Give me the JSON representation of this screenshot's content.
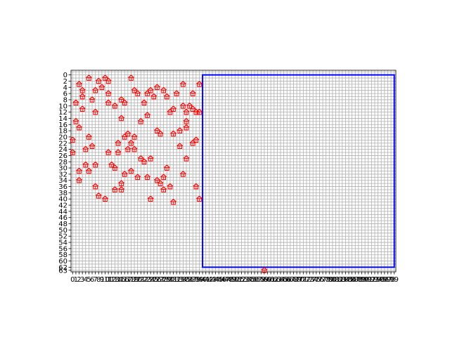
{
  "chart_data": {
    "type": "scatter",
    "title": "",
    "xlabel": "",
    "ylabel": "",
    "xlim": [
      -0.5,
      99.5
    ],
    "ylim": [
      63.5,
      -1.5
    ],
    "y_inverted": true,
    "grid": true,
    "grid_color": "#b0b0b0",
    "x_tick_labels": [
      "0",
      "1",
      "2",
      "3",
      "4",
      "5",
      "6",
      "7",
      "8",
      "9",
      "10",
      "11",
      "12",
      "13",
      "14",
      "15",
      "16",
      "17",
      "18",
      "19",
      "20",
      "21",
      "22",
      "23",
      "24",
      "25",
      "26",
      "27",
      "28",
      "29",
      "30",
      "31",
      "32",
      "33",
      "34",
      "35",
      "36",
      "37",
      "38",
      "39",
      "40",
      "41",
      "42",
      "43",
      "44",
      "45",
      "46",
      "47",
      "48",
      "49",
      "50",
      "51",
      "52",
      "53",
      "54",
      "55",
      "56",
      "57",
      "58",
      "59",
      "60",
      "61",
      "62",
      "63",
      "64",
      "65",
      "66",
      "67",
      "68",
      "69",
      "70",
      "71",
      "72",
      "73",
      "74",
      "75",
      "76",
      "77",
      "78",
      "79",
      "80",
      "81",
      "82",
      "83",
      "84",
      "85",
      "86",
      "87",
      "88",
      "89",
      "90",
      "91",
      "92",
      "93",
      "94",
      "95",
      "96",
      "97",
      "98",
      "99"
    ],
    "y_tick_labels": [
      "0",
      "2",
      "4",
      "6",
      "8",
      "10",
      "12",
      "14",
      "16",
      "18",
      "20",
      "22",
      "24",
      "26",
      "28",
      "30",
      "32",
      "34",
      "36",
      "38",
      "40",
      "42",
      "44",
      "46",
      "48",
      "50",
      "52",
      "54",
      "56",
      "58",
      "60",
      "62",
      "63"
    ],
    "marker": {
      "shape": "house-icon",
      "color": "#ff0000"
    },
    "points": [
      {
        "x": 5,
        "y": 1
      },
      {
        "x": 10,
        "y": 1
      },
      {
        "x": 18,
        "y": 1
      },
      {
        "x": 2,
        "y": 3
      },
      {
        "x": 8,
        "y": 2
      },
      {
        "x": 11,
        "y": 2
      },
      {
        "x": 34,
        "y": 3
      },
      {
        "x": 39,
        "y": 3
      },
      {
        "x": 9,
        "y": 4
      },
      {
        "x": 26,
        "y": 4
      },
      {
        "x": 3,
        "y": 5
      },
      {
        "x": 7,
        "y": 5
      },
      {
        "x": 19,
        "y": 5
      },
      {
        "x": 24,
        "y": 5
      },
      {
        "x": 28,
        "y": 5
      },
      {
        "x": 37,
        "y": 6
      },
      {
        "x": 11,
        "y": 6
      },
      {
        "x": 20,
        "y": 6
      },
      {
        "x": 23,
        "y": 6
      },
      {
        "x": 32,
        "y": 6
      },
      {
        "x": 3,
        "y": 7
      },
      {
        "x": 6,
        "y": 8
      },
      {
        "x": 15,
        "y": 8
      },
      {
        "x": 25,
        "y": 7
      },
      {
        "x": 29,
        "y": 7
      },
      {
        "x": 1,
        "y": 9
      },
      {
        "x": 11,
        "y": 9
      },
      {
        "x": 16,
        "y": 9
      },
      {
        "x": 22,
        "y": 9
      },
      {
        "x": 34,
        "y": 10
      },
      {
        "x": 13,
        "y": 10
      },
      {
        "x": 36,
        "y": 10
      },
      {
        "x": 37,
        "y": 11
      },
      {
        "x": 3,
        "y": 11
      },
      {
        "x": 31,
        "y": 11
      },
      {
        "x": 39,
        "y": 12
      },
      {
        "x": 7,
        "y": 12
      },
      {
        "x": 30,
        "y": 12
      },
      {
        "x": 35,
        "y": 12
      },
      {
        "x": 38,
        "y": 12
      },
      {
        "x": 23,
        "y": 13
      },
      {
        "x": 15,
        "y": 14
      },
      {
        "x": 1,
        "y": 15
      },
      {
        "x": 21,
        "y": 15
      },
      {
        "x": 35,
        "y": 15
      },
      {
        "x": 2,
        "y": 17
      },
      {
        "x": 35,
        "y": 17
      },
      {
        "x": 26,
        "y": 18
      },
      {
        "x": 33,
        "y": 18
      },
      {
        "x": 17,
        "y": 19
      },
      {
        "x": 27,
        "y": 19
      },
      {
        "x": 31,
        "y": 19
      },
      {
        "x": 5,
        "y": 20
      },
      {
        "x": 16,
        "y": 20
      },
      {
        "x": 19,
        "y": 20
      },
      {
        "x": 0,
        "y": 21
      },
      {
        "x": 38,
        "y": 21
      },
      {
        "x": 14,
        "y": 22
      },
      {
        "x": 18,
        "y": 22
      },
      {
        "x": 37,
        "y": 22
      },
      {
        "x": 6,
        "y": 23
      },
      {
        "x": 33,
        "y": 23
      },
      {
        "x": 4,
        "y": 24
      },
      {
        "x": 17,
        "y": 24
      },
      {
        "x": 19,
        "y": 24
      },
      {
        "x": 0,
        "y": 25
      },
      {
        "x": 11,
        "y": 25
      },
      {
        "x": 14,
        "y": 25
      },
      {
        "x": 21,
        "y": 27
      },
      {
        "x": 22,
        "y": 28
      },
      {
        "x": 24,
        "y": 27
      },
      {
        "x": 35,
        "y": 27
      },
      {
        "x": 4,
        "y": 29
      },
      {
        "x": 7,
        "y": 29
      },
      {
        "x": 12,
        "y": 29
      },
      {
        "x": 13,
        "y": 30
      },
      {
        "x": 29,
        "y": 30
      },
      {
        "x": 2,
        "y": 31
      },
      {
        "x": 5,
        "y": 31
      },
      {
        "x": 18,
        "y": 31
      },
      {
        "x": 16,
        "y": 32
      },
      {
        "x": 34,
        "y": 32
      },
      {
        "x": 20,
        "y": 33
      },
      {
        "x": 23,
        "y": 33
      },
      {
        "x": 28,
        "y": 33
      },
      {
        "x": 2,
        "y": 34
      },
      {
        "x": 15,
        "y": 35
      },
      {
        "x": 26,
        "y": 34
      },
      {
        "x": 27,
        "y": 35
      },
      {
        "x": 7,
        "y": 36
      },
      {
        "x": 30,
        "y": 36
      },
      {
        "x": 38,
        "y": 36
      },
      {
        "x": 13,
        "y": 37
      },
      {
        "x": 15,
        "y": 37
      },
      {
        "x": 28,
        "y": 37
      },
      {
        "x": 8,
        "y": 39
      },
      {
        "x": 10,
        "y": 40
      },
      {
        "x": 24,
        "y": 40
      },
      {
        "x": 39,
        "y": 40
      },
      {
        "x": 31,
        "y": 41
      },
      {
        "x": 59,
        "y": 63
      }
    ],
    "rectangle": {
      "x0": 40,
      "y0": 0,
      "x1": 99,
      "y1": 62,
      "color": "#0000ff"
    }
  }
}
